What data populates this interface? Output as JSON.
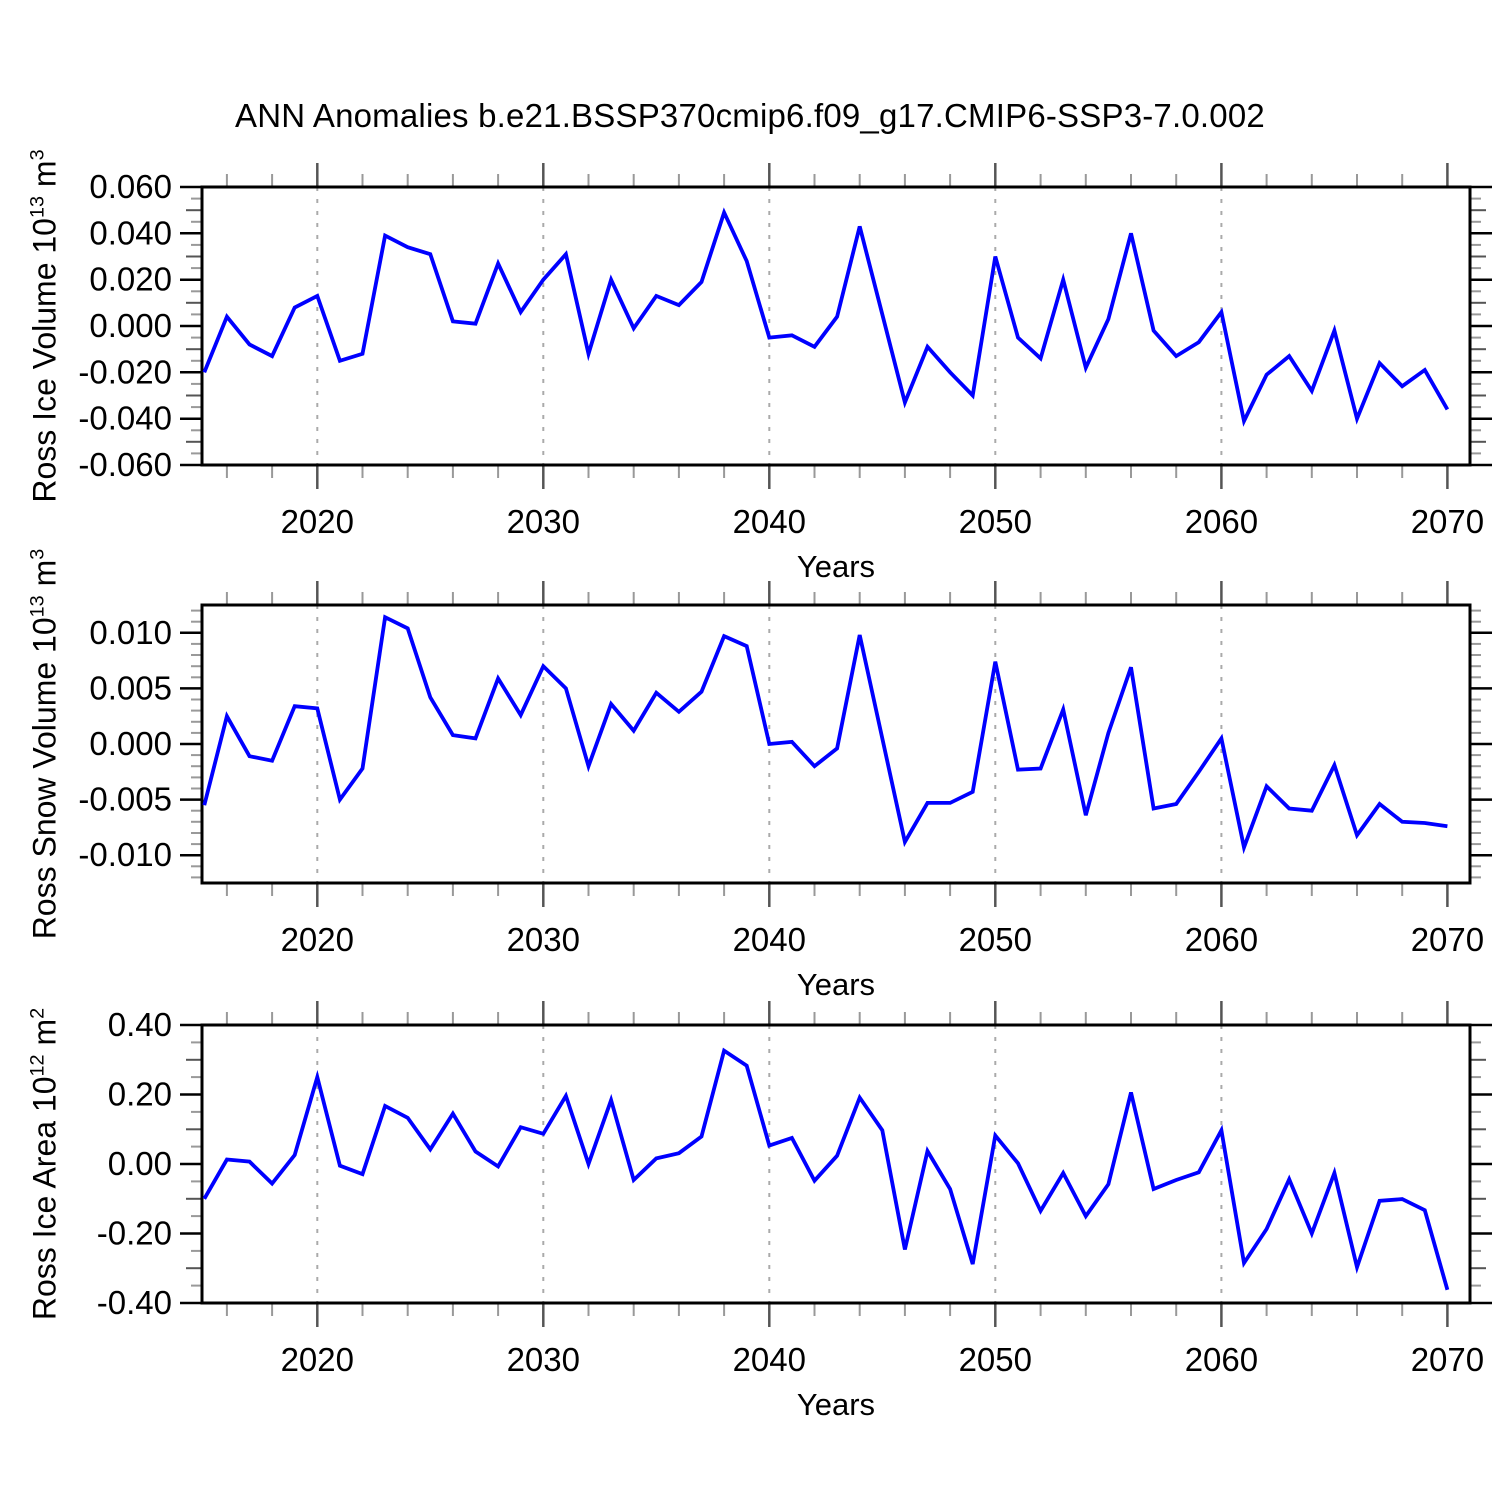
{
  "title": "ANN Anomalies b.e21.BSSP370cmip6.f09_g17.CMIP6-SSP3-7.0.002",
  "colors": {
    "line": "#0000ff",
    "grid": "#aaaaaa",
    "frame": "#000000",
    "tick_major_x": "#555555",
    "tick_mid": "#555555",
    "tick_minor": "#999999"
  },
  "years": [
    2015,
    2016,
    2017,
    2018,
    2019,
    2020,
    2021,
    2022,
    2023,
    2024,
    2025,
    2026,
    2027,
    2028,
    2029,
    2030,
    2031,
    2032,
    2033,
    2034,
    2035,
    2036,
    2037,
    2038,
    2039,
    2040,
    2041,
    2042,
    2043,
    2044,
    2045,
    2046,
    2047,
    2048,
    2049,
    2050,
    2051,
    2052,
    2053,
    2054,
    2055,
    2056,
    2057,
    2058,
    2059,
    2060,
    2061,
    2062,
    2063,
    2064,
    2065,
    2066,
    2067,
    2068,
    2069,
    2070
  ],
  "x_axis": {
    "label": "Years",
    "xlim": [
      2014.9,
      2071.0
    ],
    "xticks": [
      {
        "v": 2020,
        "label": "2020"
      },
      {
        "v": 2030,
        "label": "2030"
      },
      {
        "v": 2040,
        "label": "2040"
      },
      {
        "v": 2050,
        "label": "2050"
      },
      {
        "v": 2060,
        "label": "2060"
      },
      {
        "v": 2070,
        "label": "2070"
      }
    ],
    "xminor_step": 2,
    "xminor_range": [
      2016,
      2070
    ],
    "grid_years": [
      2020,
      2030,
      2040,
      2050,
      2060
    ],
    "grid_style": "dashed"
  },
  "chart_data": [
    {
      "type": "line",
      "name": "ross-ice-volume",
      "ylabel": {
        "pre": "Ross Ice Volume 10",
        "sup1": "13",
        "mid": " m",
        "sup2": "3"
      },
      "ylim": [
        -0.06,
        0.06
      ],
      "yticks": [
        {
          "v": 0.06,
          "label": "0.060"
        },
        {
          "v": 0.04,
          "label": "0.040"
        },
        {
          "v": 0.02,
          "label": "0.020"
        },
        {
          "v": 0.0,
          "label": "0.000"
        },
        {
          "v": -0.02,
          "label": "-0.020"
        },
        {
          "v": -0.04,
          "label": "-0.040"
        },
        {
          "v": -0.06,
          "label": "-0.060"
        }
      ],
      "ymid": [
        0.05,
        0.03,
        0.01,
        -0.01,
        -0.03,
        -0.05
      ],
      "yminor_step": 0.005,
      "values": [
        -0.02,
        0.004,
        -0.008,
        -0.013,
        0.008,
        0.013,
        -0.015,
        -0.012,
        0.039,
        0.034,
        0.031,
        0.002,
        0.001,
        0.027,
        0.006,
        0.02,
        0.031,
        -0.012,
        0.02,
        -0.001,
        0.013,
        0.009,
        0.019,
        0.049,
        0.028,
        -0.005,
        -0.004,
        -0.009,
        0.004,
        0.043,
        0.005,
        -0.033,
        -0.009,
        -0.02,
        -0.03,
        0.03,
        -0.005,
        -0.014,
        0.02,
        -0.018,
        0.003,
        0.04,
        -0.002,
        -0.013,
        -0.007,
        0.006,
        -0.041,
        -0.021,
        -0.013,
        -0.028,
        -0.002,
        -0.04,
        -0.016,
        -0.026,
        -0.019,
        -0.036
      ]
    },
    {
      "type": "line",
      "name": "ross-snow-volume",
      "ylabel": {
        "pre": "Ross Snow Volume 10",
        "sup1": "13",
        "mid": " m",
        "sup2": "3"
      },
      "ylim": [
        -0.0125,
        0.0125
      ],
      "yticks": [
        {
          "v": 0.01,
          "label": "0.010"
        },
        {
          "v": 0.005,
          "label": "0.005"
        },
        {
          "v": 0.0,
          "label": "0.000"
        },
        {
          "v": -0.005,
          "label": "-0.005"
        },
        {
          "v": -0.01,
          "label": "-0.010"
        }
      ],
      "ymid": [],
      "yminor_step": 0.001,
      "values": [
        -0.0055,
        0.0025,
        -0.0011,
        -0.0015,
        0.0034,
        0.0032,
        -0.005,
        -0.0022,
        0.0114,
        0.0104,
        0.0042,
        0.0008,
        0.0005,
        0.0059,
        0.0026,
        0.007,
        0.005,
        -0.002,
        0.0036,
        0.0012,
        0.0046,
        0.0029,
        0.0047,
        0.0097,
        0.0088,
        0.0,
        0.0002,
        -0.002,
        -0.0004,
        0.0098,
        0.0005,
        -0.0088,
        -0.0053,
        -0.0053,
        -0.0043,
        0.0074,
        -0.0023,
        -0.0022,
        0.0031,
        -0.0064,
        0.001,
        0.0069,
        -0.0058,
        -0.0054,
        -0.0025,
        0.0005,
        -0.0093,
        -0.0038,
        -0.0058,
        -0.006,
        -0.0019,
        -0.0082,
        -0.0054,
        -0.007,
        -0.0071,
        -0.0074
      ]
    },
    {
      "type": "line",
      "name": "ross-ice-area",
      "ylabel": {
        "pre": "Ross Ice Area 10",
        "sup1": "12",
        "mid": " m",
        "sup2": "2"
      },
      "ylim": [
        -0.4,
        0.4
      ],
      "yticks": [
        {
          "v": 0.4,
          "label": "0.40"
        },
        {
          "v": 0.2,
          "label": "0.20"
        },
        {
          "v": 0.0,
          "label": "0.00"
        },
        {
          "v": -0.2,
          "label": "-0.20"
        },
        {
          "v": -0.4,
          "label": "-0.40"
        }
      ],
      "ymid": [
        0.3,
        0.1,
        -0.1,
        -0.3
      ],
      "yminor_step": 0.05,
      "values": [
        -0.1,
        0.013,
        0.007,
        -0.056,
        0.026,
        0.25,
        -0.005,
        -0.029,
        0.167,
        0.133,
        0.042,
        0.145,
        0.036,
        -0.007,
        0.106,
        0.087,
        0.196,
        0.0,
        0.184,
        -0.046,
        0.016,
        0.031,
        0.079,
        0.326,
        0.283,
        0.053,
        0.075,
        -0.048,
        0.024,
        0.191,
        0.097,
        -0.246,
        0.037,
        -0.072,
        -0.288,
        0.082,
        0.002,
        -0.135,
        -0.026,
        -0.15,
        -0.058,
        0.206,
        -0.072,
        -0.046,
        -0.024,
        0.097,
        -0.285,
        -0.187,
        -0.044,
        -0.2,
        -0.026,
        -0.297,
        -0.106,
        -0.101,
        -0.133,
        -0.362
      ]
    }
  ]
}
